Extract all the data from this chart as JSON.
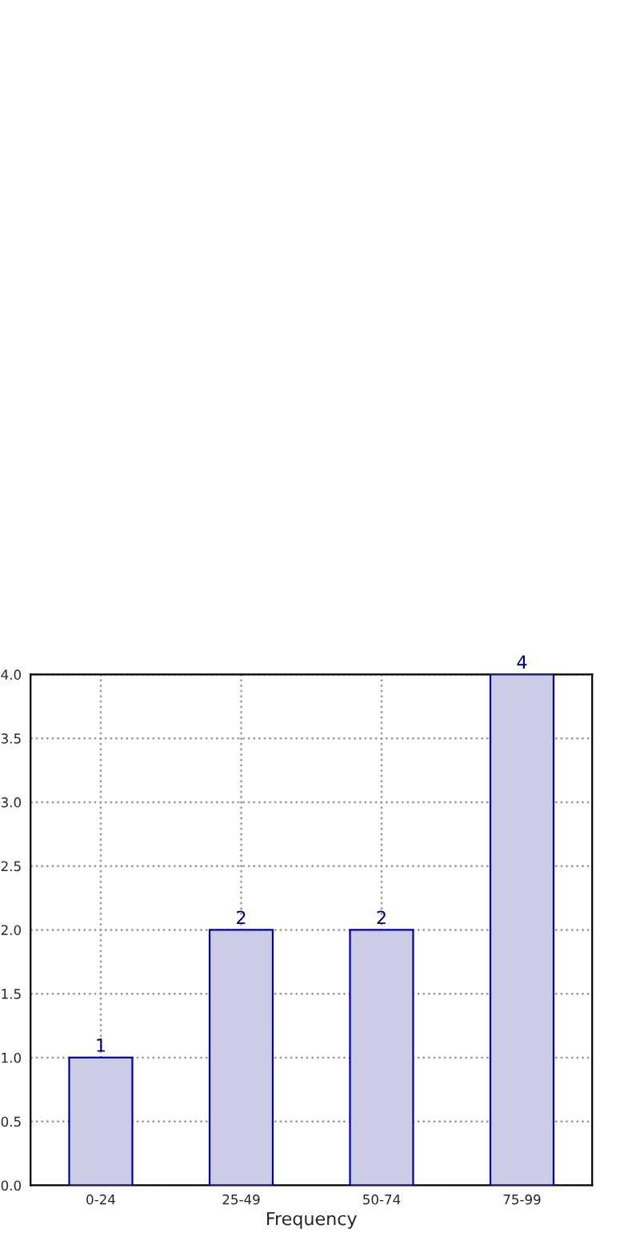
{
  "chart_data": {
    "type": "bar",
    "xlabel": "Frequency",
    "categories": [
      "0-24",
      "25-49",
      "50-74",
      "75-99"
    ],
    "series": [
      {
        "color": "#cccce6",
        "values": [
          1,
          2,
          2,
          4
        ]
      }
    ],
    "ylim": [
      0,
      4
    ],
    "yticks": [
      {
        "value": 0,
        "label": "0.0"
      },
      {
        "value": 0.5,
        "label": "0.5"
      },
      {
        "value": 1,
        "label": "1.0"
      },
      {
        "value": 1.5,
        "label": "1.5"
      },
      {
        "value": 2,
        "label": "2.0"
      },
      {
        "value": 2.5,
        "label": "2.5"
      },
      {
        "value": 3,
        "label": "3.0"
      },
      {
        "value": 3.5,
        "label": "3.5"
      },
      {
        "value": 4,
        "label": "4.0"
      }
    ],
    "grid": true,
    "data_labels": true
  }
}
